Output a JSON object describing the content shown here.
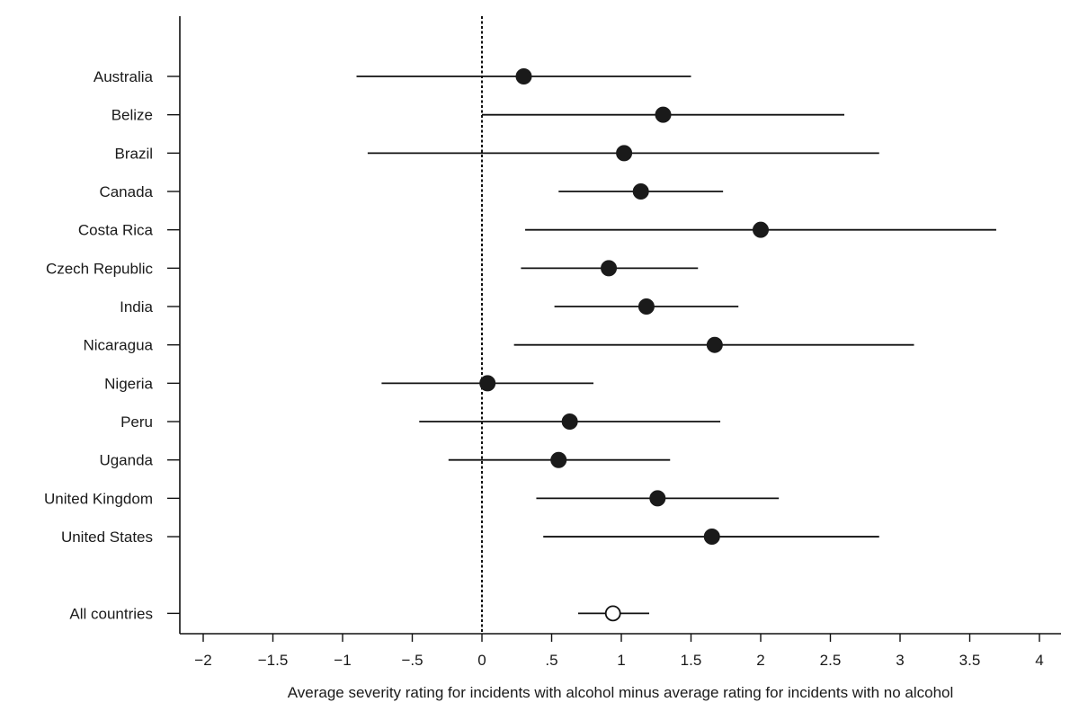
{
  "chart_data": {
    "type": "forest-plot",
    "title": "",
    "xlabel": "Average severity rating for incidents with alcohol minus average rating for incidents with no alcohol",
    "ylabel": "",
    "xlim": [
      -2.15,
      4.15
    ],
    "x_ticks": [
      -2,
      -1.5,
      -1,
      -0.5,
      0,
      0.5,
      1,
      1.5,
      2,
      2.5,
      3,
      3.5,
      4
    ],
    "x_tick_labels": [
      "−2",
      "−1.5",
      "−1",
      "−.5",
      "0",
      ".5",
      "1",
      "1.5",
      "2",
      "2.5",
      "3",
      "3.5",
      "4"
    ],
    "reference_line": {
      "x": 0,
      "style": "dashed"
    },
    "grid": false,
    "rows": [
      {
        "label": "Australia",
        "estimate": 0.3,
        "ci_low": -0.9,
        "ci_high": 1.5,
        "marker": "filled"
      },
      {
        "label": "Belize",
        "estimate": 1.3,
        "ci_low": 0.0,
        "ci_high": 2.6,
        "marker": "filled"
      },
      {
        "label": "Brazil",
        "estimate": 1.02,
        "ci_low": -0.82,
        "ci_high": 2.85,
        "marker": "filled"
      },
      {
        "label": "Canada",
        "estimate": 1.14,
        "ci_low": 0.55,
        "ci_high": 1.73,
        "marker": "filled"
      },
      {
        "label": "Costa Rica",
        "estimate": 2.0,
        "ci_low": 0.31,
        "ci_high": 3.69,
        "marker": "filled"
      },
      {
        "label": "Czech Republic",
        "estimate": 0.91,
        "ci_low": 0.28,
        "ci_high": 1.55,
        "marker": "filled"
      },
      {
        "label": "India",
        "estimate": 1.18,
        "ci_low": 0.52,
        "ci_high": 1.84,
        "marker": "filled"
      },
      {
        "label": "Nicaragua",
        "estimate": 1.67,
        "ci_low": 0.23,
        "ci_high": 3.1,
        "marker": "filled"
      },
      {
        "label": "Nigeria",
        "estimate": 0.04,
        "ci_low": -0.72,
        "ci_high": 0.8,
        "marker": "filled"
      },
      {
        "label": "Peru",
        "estimate": 0.63,
        "ci_low": -0.45,
        "ci_high": 1.71,
        "marker": "filled"
      },
      {
        "label": "Uganda",
        "estimate": 0.55,
        "ci_low": -0.24,
        "ci_high": 1.35,
        "marker": "filled"
      },
      {
        "label": "United Kingdom",
        "estimate": 1.26,
        "ci_low": 0.39,
        "ci_high": 2.13,
        "marker": "filled"
      },
      {
        "label": "United States",
        "estimate": 1.65,
        "ci_low": 0.44,
        "ci_high": 2.85,
        "marker": "filled"
      },
      {
        "label": "All countries",
        "estimate": 0.94,
        "ci_low": 0.69,
        "ci_high": 1.2,
        "marker": "open",
        "separated": true
      }
    ]
  }
}
